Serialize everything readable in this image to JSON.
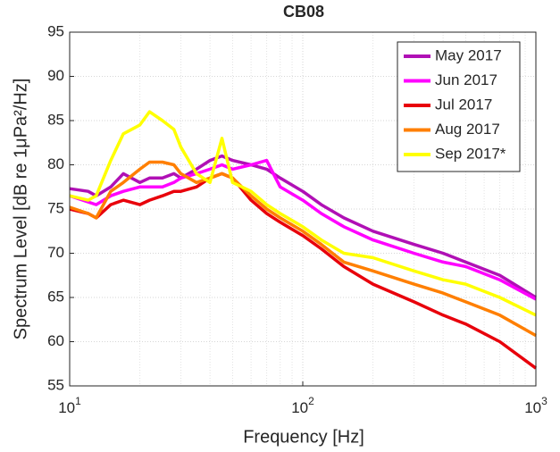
{
  "chart_data": {
    "type": "line",
    "title": "CB08",
    "x_label": "Frequency [Hz]",
    "y_label": "Spectrum Level [dB re 1μPa²/Hz]",
    "x_log": true,
    "grid": true,
    "legend": "upper-right",
    "x": [
      10,
      12,
      13,
      15,
      17,
      20,
      22,
      25,
      28,
      30,
      35,
      40,
      45,
      50,
      60,
      70,
      80,
      100,
      120,
      150,
      200,
      300,
      400,
      500,
      700,
      1000
    ],
    "series": [
      {
        "name": "May 2017",
        "color": "#b010b5",
        "values": [
          77.3,
          77,
          76.5,
          77.5,
          79,
          78,
          78.5,
          78.5,
          79,
          78.5,
          79.5,
          80.5,
          81,
          80.5,
          80,
          79.5,
          78.5,
          77,
          75.5,
          74,
          72.5,
          71,
          70,
          69,
          67.5,
          65
        ]
      },
      {
        "name": "Jun 2017",
        "color": "#ff00ff",
        "values": [
          76.5,
          75.8,
          75.5,
          76.5,
          77,
          77.5,
          77.5,
          77.5,
          78,
          78.5,
          79,
          79.5,
          80,
          79.5,
          80,
          80.5,
          77.5,
          76,
          74.5,
          73,
          71.5,
          70,
          69,
          68.5,
          67,
          64.8
        ]
      },
      {
        "name": "Jul 2017",
        "color": "#e8000b",
        "values": [
          75,
          74.5,
          74,
          75.5,
          76,
          75.5,
          76,
          76.5,
          77,
          77,
          77.5,
          78.5,
          79,
          78.5,
          76,
          74.5,
          73.5,
          72,
          70.5,
          68.5,
          66.5,
          64.5,
          63,
          62,
          60,
          57
        ]
      },
      {
        "name": "Aug 2017",
        "color": "#ff7f00",
        "values": [
          75.2,
          74.5,
          74,
          77,
          78,
          79.5,
          80.3,
          80.3,
          80,
          79,
          78,
          78.5,
          79,
          78.5,
          76.5,
          75,
          74,
          72.5,
          71,
          69,
          68,
          66.5,
          65.5,
          64.5,
          63,
          60.7
        ]
      },
      {
        "name": "Sep 2017*",
        "color": "#ffff00",
        "values": [
          76.5,
          76,
          76.5,
          80.5,
          83.5,
          84.5,
          86,
          85,
          84,
          82,
          79,
          78,
          83,
          78,
          77,
          75.5,
          74.5,
          73,
          71.5,
          70,
          69.5,
          68,
          67,
          66.5,
          65,
          63
        ]
      }
    ],
    "xlim": [
      10,
      1000
    ],
    "xticks": [
      {
        "value": 10,
        "base": "10",
        "exponent": "1"
      },
      {
        "value": 100,
        "base": "10",
        "exponent": "2"
      },
      {
        "value": 1000,
        "base": "10",
        "exponent": "3"
      }
    ],
    "xminorticks": [
      20,
      30,
      40,
      50,
      60,
      70,
      80,
      90,
      200,
      300,
      400,
      500,
      600,
      700,
      800,
      900
    ],
    "ylim": [
      55,
      95
    ],
    "yticks": [
      55,
      60,
      65,
      70,
      75,
      80,
      85,
      90,
      95
    ]
  }
}
